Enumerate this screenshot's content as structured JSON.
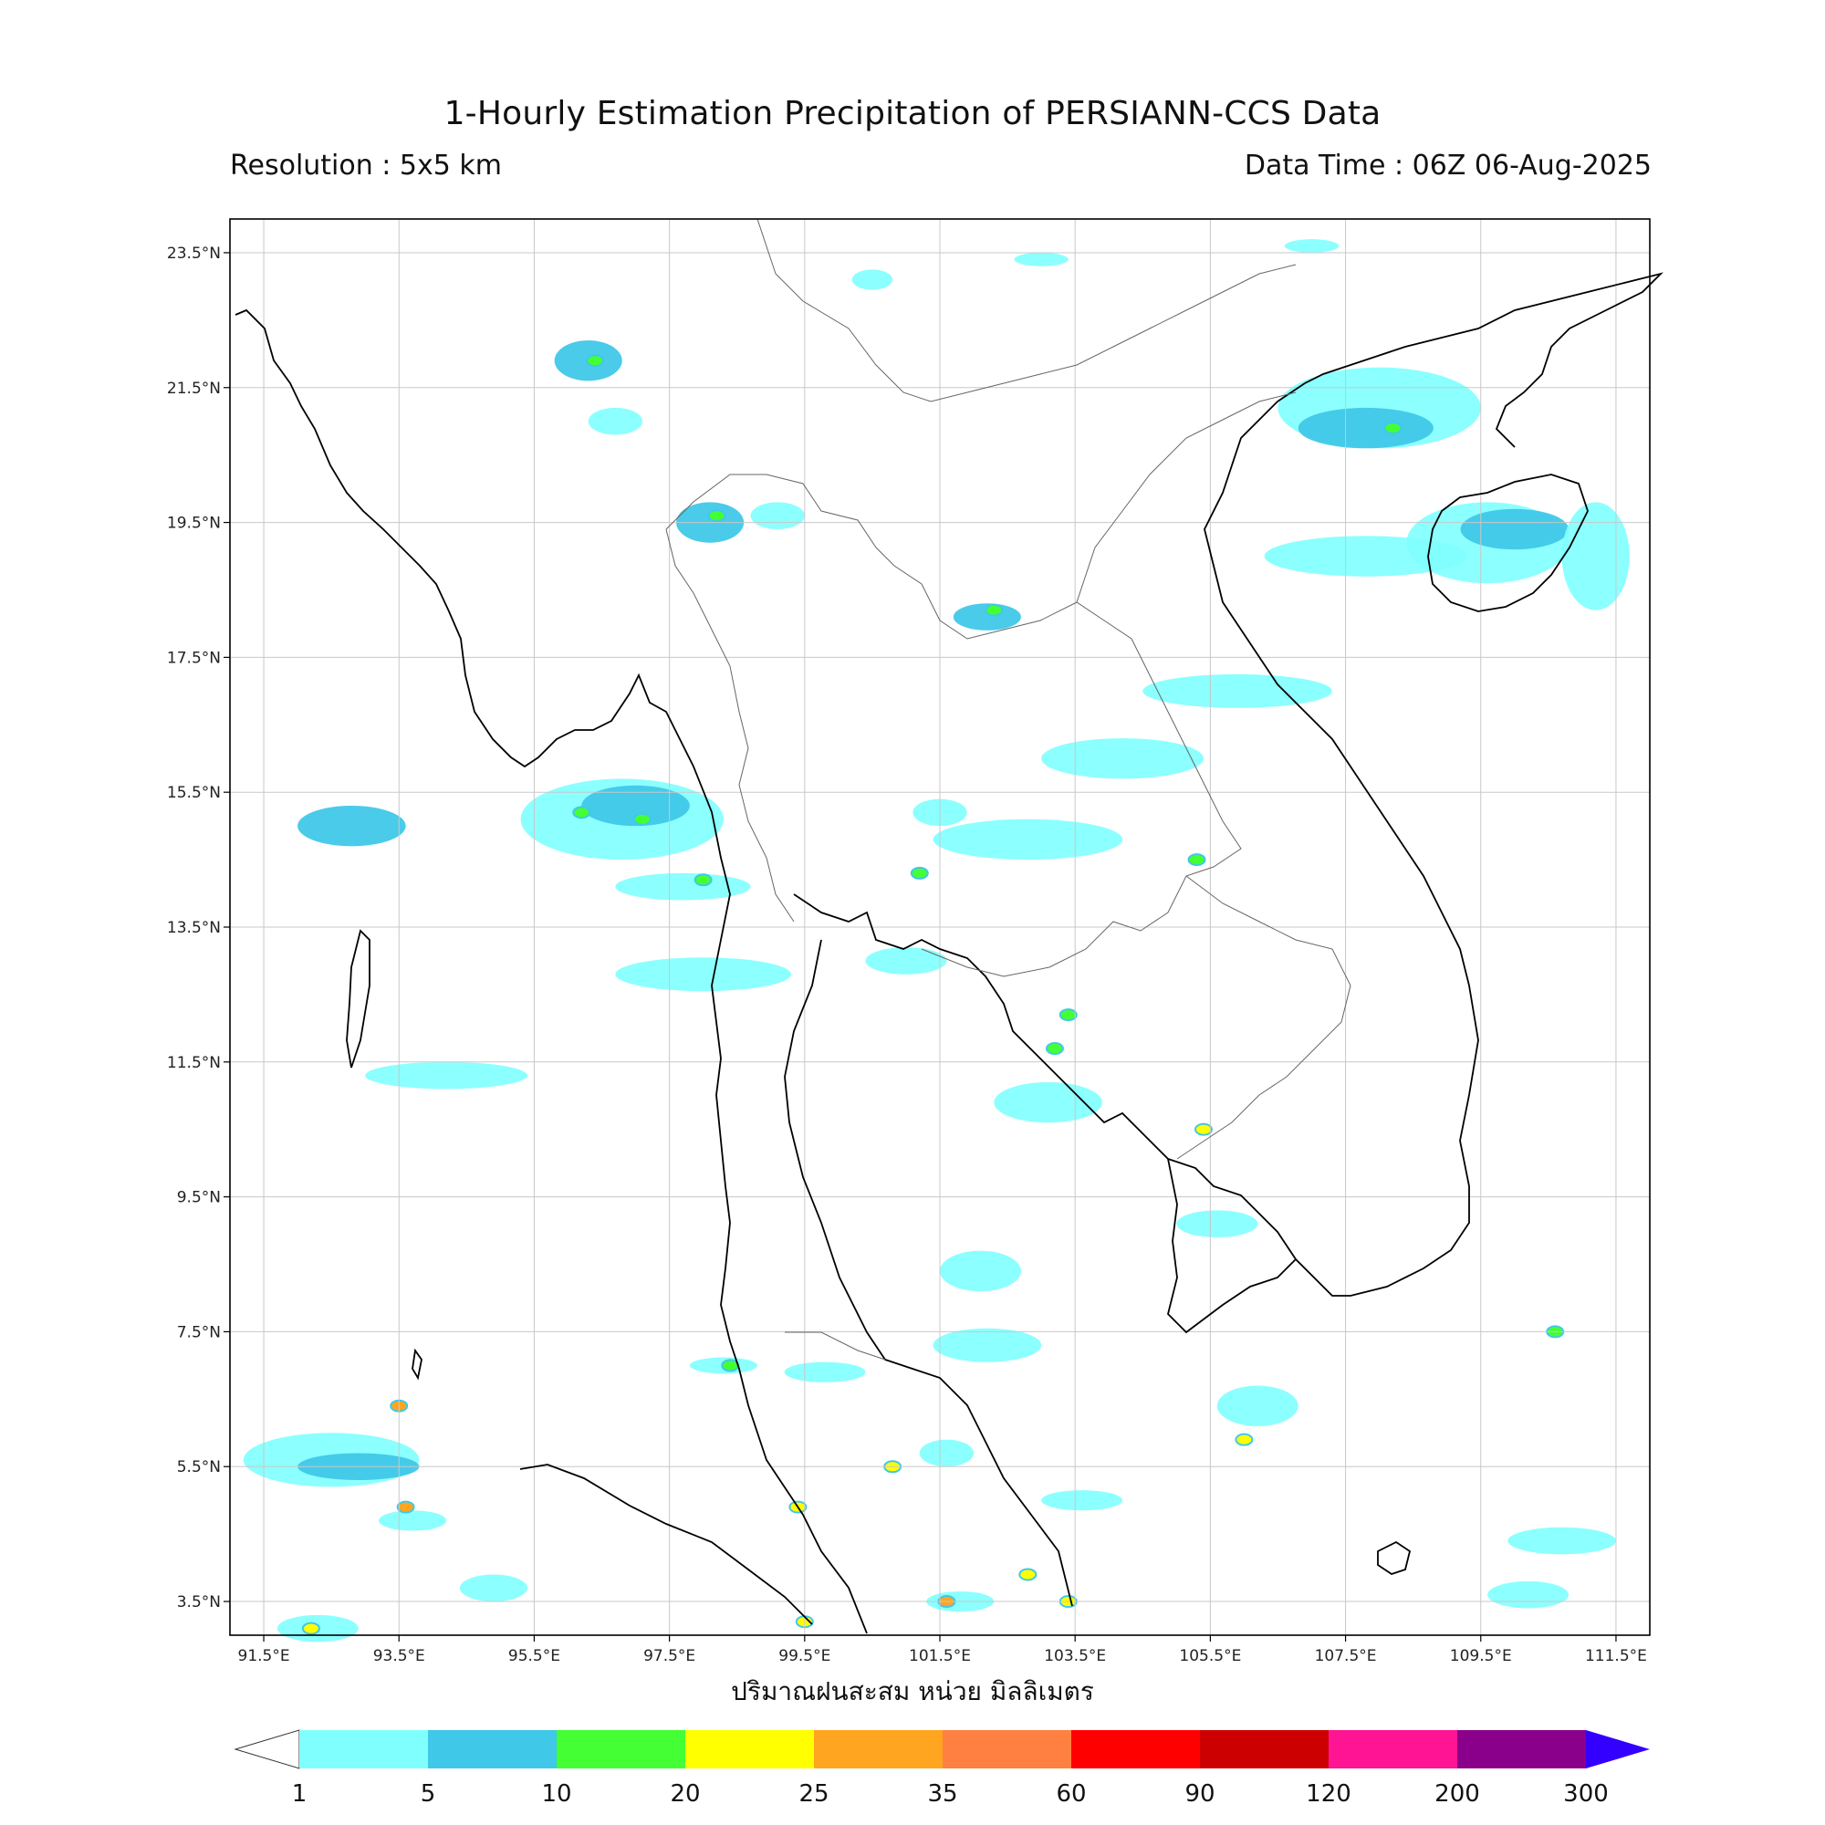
{
  "title": "1-Hourly Estimation Precipitation of PERSIANN-CCS Data",
  "resolution_label": "Resolution : 5x5 km",
  "data_time_label": "Data Time : 06Z 06-Aug-2025",
  "x_axis_label": "ปริมาณฝนสะสม หน่วย มิลลิเมตร",
  "map": {
    "lon_range": [
      91.0,
      112.0
    ],
    "lat_range": [
      3.0,
      24.0
    ],
    "lon_ticks": [
      {
        "value": 91.5,
        "label": "91.5°E"
      },
      {
        "value": 93.5,
        "label": "93.5°E"
      },
      {
        "value": 95.5,
        "label": "95.5°E"
      },
      {
        "value": 97.5,
        "label": "97.5°E"
      },
      {
        "value": 99.5,
        "label": "99.5°E"
      },
      {
        "value": 101.5,
        "label": "101.5°E"
      },
      {
        "value": 103.5,
        "label": "103.5°E"
      },
      {
        "value": 105.5,
        "label": "105.5°E"
      },
      {
        "value": 107.5,
        "label": "107.5°E"
      },
      {
        "value": 109.5,
        "label": "109.5°E"
      },
      {
        "value": 111.5,
        "label": "111.5°E"
      }
    ],
    "lat_ticks": [
      {
        "value": 23.5,
        "label": "23.5°N"
      },
      {
        "value": 21.5,
        "label": "21.5°N"
      },
      {
        "value": 19.5,
        "label": "19.5°N"
      },
      {
        "value": 17.5,
        "label": "17.5°N"
      },
      {
        "value": 15.5,
        "label": "15.5°N"
      },
      {
        "value": 13.5,
        "label": "13.5°N"
      },
      {
        "value": 11.5,
        "label": "11.5°N"
      },
      {
        "value": 9.5,
        "label": "9.5°N"
      },
      {
        "value": 7.5,
        "label": "7.5°N"
      },
      {
        "value": 5.5,
        "label": "5.5°N"
      },
      {
        "value": 3.5,
        "label": "3.5°N"
      }
    ],
    "grid": true
  },
  "colorbar": {
    "boundaries": [
      "1",
      "5",
      "10",
      "20",
      "25",
      "35",
      "60",
      "90",
      "120",
      "200",
      "300"
    ],
    "colors": [
      "#80ffff",
      "#40c8e8",
      "#44ff33",
      "#ffff00",
      "#ffa520",
      "#ff8040",
      "#ff0000",
      "#cc0000",
      "#ff1493",
      "#8b008b"
    ],
    "under_color": "#ffffff",
    "over_color": "#3300ff"
  },
  "rain_areas": [
    {
      "lon": 92.8,
      "lat": 15.0,
      "rx": 0.8,
      "ry": 0.3,
      "level": 1
    },
    {
      "lon": 96.8,
      "lat": 15.1,
      "rx": 1.5,
      "ry": 0.6,
      "level": 0
    },
    {
      "lon": 97.0,
      "lat": 15.3,
      "rx": 0.8,
      "ry": 0.3,
      "level": 1
    },
    {
      "lon": 96.3,
      "lat": 21.9,
      "rx": 0.5,
      "ry": 0.3,
      "level": 1
    },
    {
      "lon": 96.7,
      "lat": 21.0,
      "rx": 0.4,
      "ry": 0.2,
      "level": 0
    },
    {
      "lon": 98.1,
      "lat": 19.5,
      "rx": 0.5,
      "ry": 0.3,
      "level": 1
    },
    {
      "lon": 99.1,
      "lat": 19.6,
      "rx": 0.4,
      "ry": 0.2,
      "level": 0
    },
    {
      "lon": 102.2,
      "lat": 18.1,
      "rx": 0.5,
      "ry": 0.2,
      "level": 1
    },
    {
      "lon": 97.7,
      "lat": 14.1,
      "rx": 1.0,
      "ry": 0.2,
      "level": 0
    },
    {
      "lon": 98.0,
      "lat": 12.8,
      "rx": 1.3,
      "ry": 0.25,
      "level": 0
    },
    {
      "lon": 94.2,
      "lat": 11.3,
      "rx": 1.2,
      "ry": 0.2,
      "level": 0
    },
    {
      "lon": 102.8,
      "lat": 14.8,
      "rx": 1.4,
      "ry": 0.3,
      "level": 0
    },
    {
      "lon": 104.2,
      "lat": 16.0,
      "rx": 1.2,
      "ry": 0.3,
      "level": 0
    },
    {
      "lon": 101.0,
      "lat": 13.0,
      "rx": 0.6,
      "ry": 0.2,
      "level": 0
    },
    {
      "lon": 105.9,
      "lat": 17.0,
      "rx": 1.4,
      "ry": 0.25,
      "level": 0
    },
    {
      "lon": 108.0,
      "lat": 21.2,
      "rx": 1.5,
      "ry": 0.6,
      "level": 0
    },
    {
      "lon": 107.8,
      "lat": 20.9,
      "rx": 1.0,
      "ry": 0.3,
      "level": 1
    },
    {
      "lon": 109.6,
      "lat": 19.2,
      "rx": 1.2,
      "ry": 0.6,
      "level": 0
    },
    {
      "lon": 110.0,
      "lat": 19.4,
      "rx": 0.8,
      "ry": 0.3,
      "level": 1
    },
    {
      "lon": 107.8,
      "lat": 19.0,
      "rx": 1.5,
      "ry": 0.3,
      "level": 0
    },
    {
      "lon": 111.2,
      "lat": 19.0,
      "rx": 0.5,
      "ry": 0.8,
      "level": 0
    },
    {
      "lon": 103.1,
      "lat": 10.9,
      "rx": 0.8,
      "ry": 0.3,
      "level": 0
    },
    {
      "lon": 102.1,
      "lat": 8.4,
      "rx": 0.6,
      "ry": 0.3,
      "level": 0
    },
    {
      "lon": 102.2,
      "lat": 7.3,
      "rx": 0.8,
      "ry": 0.25,
      "level": 0
    },
    {
      "lon": 106.2,
      "lat": 6.4,
      "rx": 0.6,
      "ry": 0.3,
      "level": 0
    },
    {
      "lon": 105.6,
      "lat": 9.1,
      "rx": 0.6,
      "ry": 0.2,
      "level": 0
    },
    {
      "lon": 92.5,
      "lat": 5.6,
      "rx": 1.3,
      "ry": 0.4,
      "level": 0
    },
    {
      "lon": 92.9,
      "lat": 5.5,
      "rx": 0.9,
      "ry": 0.2,
      "level": 1
    },
    {
      "lon": 94.9,
      "lat": 3.7,
      "rx": 0.5,
      "ry": 0.2,
      "level": 0
    },
    {
      "lon": 92.3,
      "lat": 3.1,
      "rx": 0.6,
      "ry": 0.2,
      "level": 0
    },
    {
      "lon": 110.2,
      "lat": 3.6,
      "rx": 0.6,
      "ry": 0.2,
      "level": 0
    },
    {
      "lon": 110.7,
      "lat": 4.4,
      "rx": 0.8,
      "ry": 0.2,
      "level": 0
    },
    {
      "lon": 101.8,
      "lat": 3.5,
      "rx": 0.5,
      "ry": 0.15,
      "level": 0
    },
    {
      "lon": 103.6,
      "lat": 5.0,
      "rx": 0.6,
      "ry": 0.15,
      "level": 0
    },
    {
      "lon": 101.6,
      "lat": 5.7,
      "rx": 0.4,
      "ry": 0.2,
      "level": 0
    },
    {
      "lon": 93.7,
      "lat": 4.7,
      "rx": 0.5,
      "ry": 0.15,
      "level": 0
    },
    {
      "lon": 99.8,
      "lat": 6.9,
      "rx": 0.6,
      "ry": 0.15,
      "level": 0
    },
    {
      "lon": 98.3,
      "lat": 7.0,
      "rx": 0.5,
      "ry": 0.12,
      "level": 0
    },
    {
      "lon": 101.5,
      "lat": 15.2,
      "rx": 0.4,
      "ry": 0.2,
      "level": 0
    },
    {
      "lon": 100.5,
      "lat": 23.1,
      "rx": 0.3,
      "ry": 0.15,
      "level": 0
    },
    {
      "lon": 103.0,
      "lat": 23.4,
      "rx": 0.4,
      "ry": 0.1,
      "level": 0
    },
    {
      "lon": 107.0,
      "lat": 23.6,
      "rx": 0.4,
      "ry": 0.1,
      "level": 0
    }
  ],
  "rain_cells": [
    {
      "lon": 96.4,
      "lat": 21.9,
      "level": 2
    },
    {
      "lon": 98.2,
      "lat": 19.6,
      "level": 2
    },
    {
      "lon": 102.3,
      "lat": 18.2,
      "level": 2
    },
    {
      "lon": 98.0,
      "lat": 14.2,
      "level": 2
    },
    {
      "lon": 97.1,
      "lat": 15.1,
      "level": 2
    },
    {
      "lon": 96.2,
      "lat": 15.2,
      "level": 2
    },
    {
      "lon": 105.3,
      "lat": 14.5,
      "level": 2
    },
    {
      "lon": 108.2,
      "lat": 20.9,
      "level": 2
    },
    {
      "lon": 93.5,
      "lat": 6.4,
      "level": 4
    },
    {
      "lon": 93.6,
      "lat": 4.9,
      "level": 4
    },
    {
      "lon": 92.2,
      "lat": 3.1,
      "level": 3
    },
    {
      "lon": 99.5,
      "lat": 3.2,
      "level": 3
    },
    {
      "lon": 101.6,
      "lat": 3.5,
      "level": 4
    },
    {
      "lon": 102.8,
      "lat": 3.9,
      "level": 3
    },
    {
      "lon": 103.4,
      "lat": 3.5,
      "level": 3
    },
    {
      "lon": 100.8,
      "lat": 5.5,
      "level": 3
    },
    {
      "lon": 110.6,
      "lat": 7.5,
      "level": 2
    },
    {
      "lon": 106.0,
      "lat": 5.9,
      "level": 3
    },
    {
      "lon": 103.4,
      "lat": 12.2,
      "level": 2
    },
    {
      "lon": 103.2,
      "lat": 11.7,
      "level": 2
    },
    {
      "lon": 105.4,
      "lat": 10.5,
      "level": 3
    },
    {
      "lon": 98.4,
      "lat": 7.0,
      "level": 2
    },
    {
      "lon": 99.4,
      "lat": 4.9,
      "level": 3
    },
    {
      "lon": 101.2,
      "lat": 14.3,
      "level": 2
    }
  ]
}
